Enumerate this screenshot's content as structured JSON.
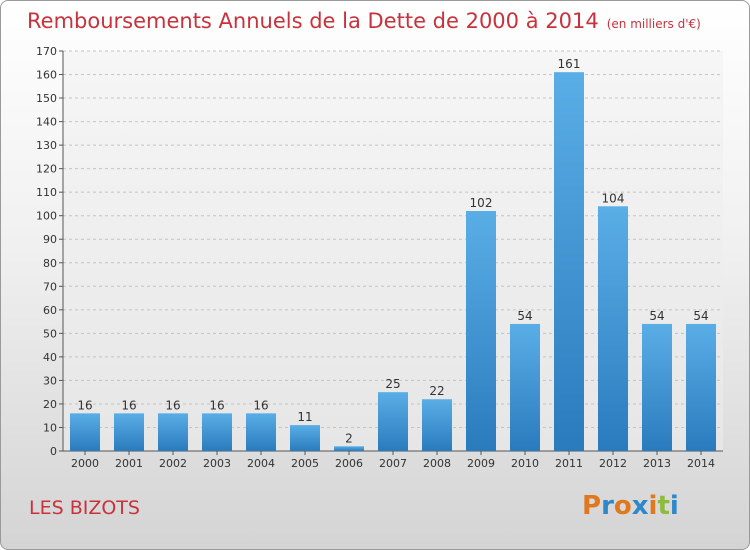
{
  "title": "Remboursements Annuels de la Dette de 2000 à 2014",
  "subtitle": "(en milliers d'€)",
  "commune": "LES BIZOTS",
  "logo": {
    "text": "Proxiti",
    "colors": [
      "#e07820",
      "#2e87c8",
      "#e07820",
      "#2e87c8",
      "#e07820",
      "#8bbd3b",
      "#2e87c8"
    ]
  },
  "chart_data": {
    "type": "bar",
    "title": "Remboursements Annuels de la Dette de 2000 à 2014",
    "subtitle": "(en milliers d'€)",
    "xlabel": "",
    "ylabel": "",
    "ylim": [
      0,
      170
    ],
    "yticks": [
      0,
      10,
      20,
      30,
      40,
      50,
      60,
      70,
      80,
      90,
      100,
      110,
      120,
      130,
      140,
      150,
      160,
      170
    ],
    "grid": true,
    "categories": [
      "2000",
      "2001",
      "2002",
      "2003",
      "2004",
      "2005",
      "2006",
      "2007",
      "2008",
      "2009",
      "2010",
      "2011",
      "2012",
      "2013",
      "2014"
    ],
    "values": [
      16,
      16,
      16,
      16,
      16,
      11,
      2,
      25,
      22,
      102,
      54,
      161,
      104,
      54,
      54
    ],
    "bar_color_top": "#5aaee6",
    "bar_color_bottom": "#2a7bbd"
  }
}
